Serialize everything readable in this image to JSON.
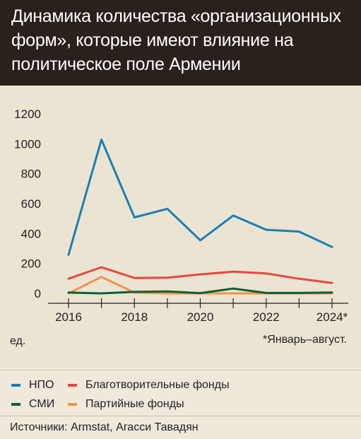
{
  "header": {
    "title": "Динамика количества «организационных форм», которые имеют влияние на политическое поле Армении"
  },
  "chart_data": {
    "type": "line",
    "title": "Динамика количества «организационных форм», которые имеют влияние на политическое поле Армении",
    "x": [
      2016,
      2017,
      2018,
      2019,
      2020,
      2021,
      2022,
      2023,
      2024
    ],
    "x_tick_labels": [
      "2016",
      "2018",
      "2020",
      "2022",
      "2024*"
    ],
    "y_tick_labels": [
      "0",
      "200",
      "400",
      "600",
      "800",
      "1000",
      "1200"
    ],
    "ylim": [
      0,
      1200
    ],
    "xlim": [
      2016,
      2024
    ],
    "grid": false,
    "unit_label": "ед.",
    "footnote": "*Январь–август.",
    "legend_position": "bottom",
    "series": [
      {
        "name": "НПО",
        "color": "#1a7fb0",
        "values": [
          258,
          1028,
          508,
          565,
          355,
          520,
          425,
          413,
          310
        ]
      },
      {
        "name": "Благотворительные фонды",
        "color": "#e8473d",
        "values": [
          98,
          175,
          103,
          105,
          127,
          145,
          133,
          98,
          70
        ]
      },
      {
        "name": "СМИ",
        "color": "#0e5f36",
        "values": [
          5,
          0,
          10,
          13,
          2,
          32,
          3,
          3,
          6
        ]
      },
      {
        "name": "Партийные фонды",
        "color": "#f3924a",
        "values": [
          0,
          110,
          5,
          0,
          0,
          0,
          0,
          0,
          0
        ]
      }
    ]
  },
  "footer": {
    "source": "Источники: Armstat, Агасси Тавадян"
  }
}
